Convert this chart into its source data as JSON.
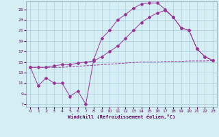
{
  "bg_color": "#d4eef4",
  "grid_color": "#aaccdd",
  "line_color": "#993399",
  "xlabel": "Windchill (Refroidissement éolien,°C)",
  "yticks": [
    7,
    9,
    11,
    13,
    15,
    17,
    19,
    21,
    23,
    25
  ],
  "xticks": [
    0,
    1,
    2,
    3,
    4,
    5,
    6,
    7,
    8,
    9,
    10,
    11,
    12,
    13,
    14,
    15,
    16,
    17,
    18,
    19,
    20,
    21,
    22,
    23
  ],
  "xlim": [
    -0.5,
    23.5
  ],
  "ylim": [
    6.5,
    26.5
  ],
  "series1_x": [
    0,
    1,
    2,
    3,
    4,
    5,
    6,
    7,
    8,
    9,
    10,
    11,
    12,
    13,
    14,
    15,
    16,
    17,
    18,
    19,
    20,
    21,
    22,
    23
  ],
  "series1_y": [
    14.0,
    10.5,
    12.0,
    11.0,
    11.0,
    8.5,
    9.5,
    7.0,
    15.5,
    19.5,
    21.0,
    23.0,
    24.0,
    25.2,
    26.0,
    26.2,
    26.2,
    25.0,
    23.5,
    21.5,
    21.0,
    17.5,
    16.0,
    15.3
  ],
  "series2_x": [
    0,
    1,
    2,
    3,
    4,
    5,
    6,
    7,
    8,
    9,
    10,
    11,
    12,
    13,
    14,
    15,
    16,
    17,
    18,
    19,
    20,
    21,
    22,
    23
  ],
  "series2_y": [
    14.0,
    14.0,
    14.0,
    14.3,
    14.5,
    14.5,
    14.8,
    15.0,
    15.2,
    16.0,
    17.0,
    18.0,
    19.5,
    21.0,
    22.5,
    23.5,
    24.3,
    24.8,
    23.5,
    21.5,
    21.0,
    17.5,
    16.0,
    15.3
  ],
  "series3_x": [
    0,
    1,
    2,
    3,
    4,
    5,
    6,
    7,
    8,
    9,
    10,
    11,
    12,
    13,
    14,
    15,
    16,
    17,
    18,
    19,
    20,
    21,
    22,
    23
  ],
  "series3_y": [
    14.0,
    14.0,
    14.0,
    14.0,
    14.0,
    14.1,
    14.2,
    14.3,
    14.4,
    14.5,
    14.6,
    14.7,
    14.8,
    14.9,
    15.0,
    15.0,
    15.0,
    15.1,
    15.1,
    15.1,
    15.2,
    15.2,
    15.2,
    15.3
  ],
  "title_color": "#550055",
  "tick_color": "#550055",
  "xlabel_color": "#550055"
}
